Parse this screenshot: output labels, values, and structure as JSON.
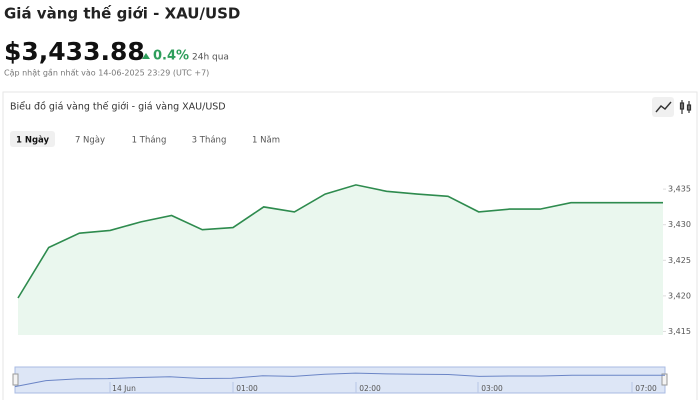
{
  "header": {
    "title": "Giá vàng thế giới - XAU/USD",
    "price": "$3,433.88",
    "change": "0.4%",
    "change_period": "24h qua",
    "updated": "Cập nhật gần nhất vào 14-06-2025 23:29 (UTC +7)"
  },
  "panel": {
    "title": "Biểu đồ giá vàng thế giới - giá vàng XAU/USD",
    "tabs": [
      "1 Ngày",
      "7 Ngày",
      "1 Tháng",
      "3 Tháng",
      "1 Năm"
    ],
    "active_tab": 0
  },
  "chart_data": {
    "type": "area",
    "series": [
      {
        "color": "#2e8b4e",
        "fill": "#eaf7ee",
        "values": [
          3419.7,
          3426.8,
          3428.8,
          3429.2,
          3430.4,
          3431.3,
          3429.3,
          3429.6,
          3432.5,
          3431.8,
          3434.3,
          3435.6,
          3434.7,
          3434.3,
          3434.0,
          3431.8,
          3432.2,
          3432.2,
          3433.1,
          3433.1,
          3433.1,
          3433.1
        ]
      }
    ],
    "ylim": [
      3414.5,
      3440.5
    ],
    "yticks": [
      {
        "value": 3415,
        "label": "3,415"
      },
      {
        "value": 3420,
        "label": "3,420"
      },
      {
        "value": 3425,
        "label": "3,425"
      },
      {
        "value": 3430,
        "label": "3,430"
      },
      {
        "value": 3435,
        "label": "3,435"
      }
    ],
    "navigator_labels": [
      "14 Jun",
      "01:00",
      "02:00",
      "03:00",
      "07:00"
    ]
  }
}
